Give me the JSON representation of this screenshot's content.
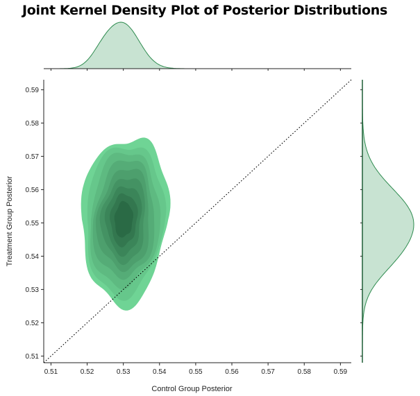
{
  "chart_data": {
    "type": "joint-kde",
    "title": "Joint Kernel Density Plot of Posterior Distributions",
    "xlabel": "Control Group Posterior",
    "ylabel": "Treatment Group Posterior",
    "xlim": [
      0.508,
      0.593
    ],
    "ylim": [
      0.508,
      0.593
    ],
    "xticks": [
      "0.51",
      "0.52",
      "0.53",
      "0.54",
      "0.55",
      "0.56",
      "0.57",
      "0.58",
      "0.59"
    ],
    "yticks": [
      "0.51",
      "0.52",
      "0.53",
      "0.54",
      "0.55",
      "0.56",
      "0.57",
      "0.58",
      "0.59"
    ],
    "x_center": 0.53,
    "y_center": 0.551,
    "x_sd": 0.0045,
    "y_sd": 0.0095,
    "contour_levels": 9,
    "reference_line": {
      "style": "dotted",
      "from": [
        0.508,
        0.508
      ],
      "to": [
        0.593,
        0.593
      ]
    },
    "colors": {
      "fill_light": "#6fd495",
      "fill_dark": "#2a6a45",
      "marginal_fill": "#c8e3d2",
      "marginal_line": "#2e8b4f"
    }
  }
}
